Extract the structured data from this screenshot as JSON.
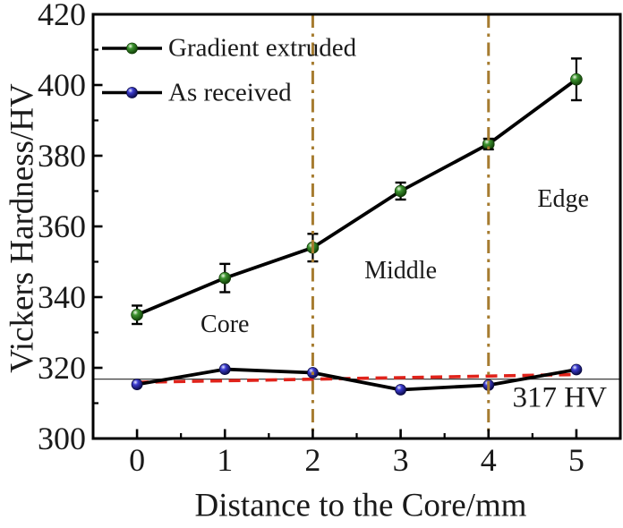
{
  "chart_data": {
    "type": "line",
    "title": "",
    "xlabel": "Distance to the Core/mm",
    "ylabel": "Vickers Hardness/HV",
    "xlim": [
      -0.5,
      5.5
    ],
    "ylim": [
      300,
      420
    ],
    "x_ticks": [
      0,
      1,
      2,
      3,
      4,
      5
    ],
    "x_minor_ticks": [
      0.5,
      1.5,
      2.5,
      3.5,
      4.5
    ],
    "y_ticks": [
      300,
      320,
      340,
      360,
      380,
      400,
      420
    ],
    "y_minor_ticks": [
      310,
      330,
      350,
      370,
      390,
      410
    ],
    "grid": false,
    "frame_color": "#000000",
    "series": [
      {
        "name": "Gradient extruded",
        "x": [
          0,
          1,
          2,
          3,
          4,
          5
        ],
        "values": [
          335.0,
          345.4,
          354.0,
          370.0,
          383.3,
          401.6
        ],
        "errors": [
          2.6,
          4.0,
          3.9,
          2.4,
          1.5,
          5.9
        ],
        "line_color": "#000000",
        "marker": "sphere",
        "marker_color": "#2e7d21"
      },
      {
        "name": "As received",
        "x": [
          0,
          1,
          2,
          3,
          4,
          5
        ],
        "values": [
          315.3,
          319.6,
          318.6,
          313.8,
          315.1,
          319.5
        ],
        "errors": [
          0,
          0,
          0,
          0,
          0,
          0
        ],
        "line_color": "#000000",
        "marker": "sphere",
        "marker_color": "#1c1c8e"
      }
    ],
    "reference_lines": {
      "mean_line": {
        "value": 317,
        "color": "#3c3c3c",
        "label": "317 HV",
        "label_pos": [
          4.81,
          311.4
        ]
      },
      "red_dashed": {
        "from": [
          0,
          315.9
        ],
        "to": [
          5,
          318.1
        ],
        "color": "#e0231b"
      },
      "vertical_dashdot": {
        "positions": [
          2,
          4
        ],
        "color": "#a67c30"
      }
    },
    "annotations": [
      {
        "text": "Core",
        "x": 1.0,
        "y": 332.2
      },
      {
        "text": "Middle",
        "x": 3.0,
        "y": 347.3
      },
      {
        "text": "Edge",
        "x": 4.85,
        "y": 367.5
      }
    ],
    "legend": {
      "position": "top-left",
      "entries": [
        "Gradient extruded",
        "As received"
      ]
    }
  }
}
